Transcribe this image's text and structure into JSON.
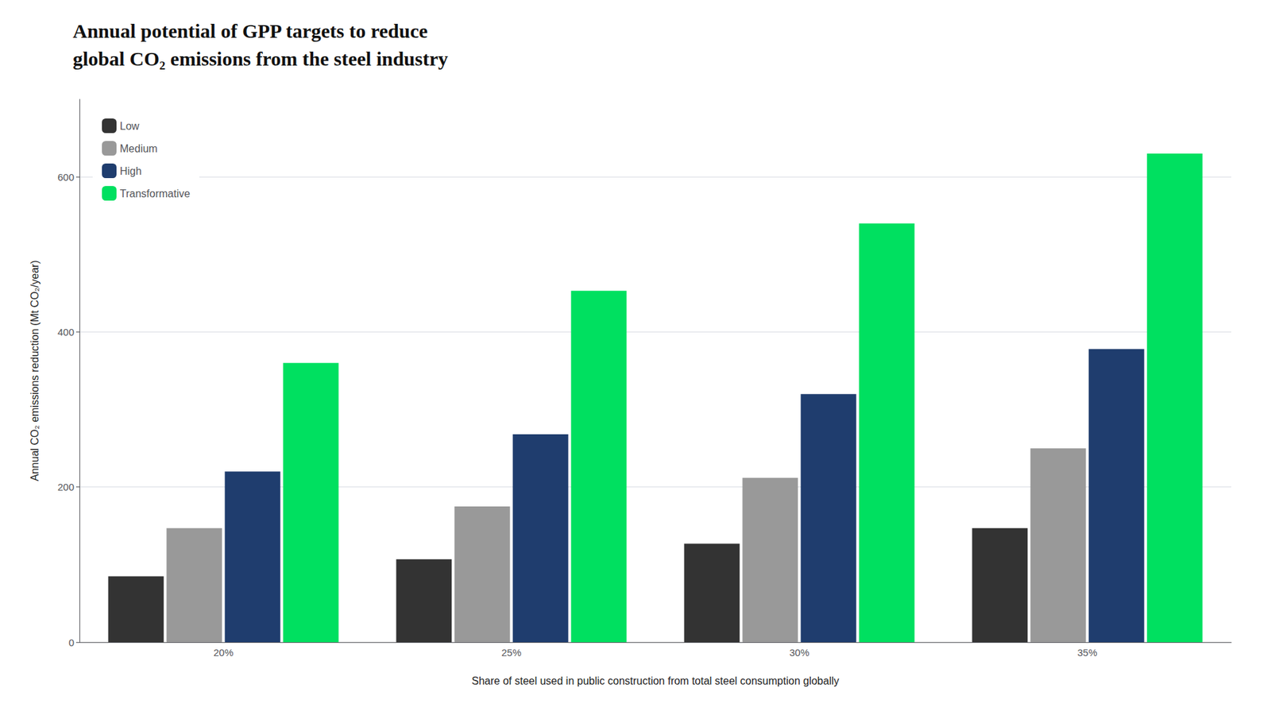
{
  "chart_data": {
    "type": "bar",
    "title": "Annual potential of GPP targets to reduce\nglobal CO₂ emissions from the steel industry",
    "categories": [
      "20%",
      "25%",
      "30%",
      "35%"
    ],
    "series": [
      {
        "name": "Low",
        "color": "#333333",
        "values": [
          85,
          107,
          127,
          147
        ]
      },
      {
        "name": "Medium",
        "color": "#999999",
        "values": [
          147,
          175,
          212,
          250
        ]
      },
      {
        "name": "High",
        "color": "#1f3d6e",
        "values": [
          220,
          268,
          320,
          378
        ]
      },
      {
        "name": "Transformative",
        "color": "#00e060",
        "values": [
          360,
          453,
          540,
          630
        ]
      }
    ],
    "xlabel": "Share of steel used in public construction from total steel consumption globally",
    "ylabel": "Annual CO₂ emissions reduction (Mt CO₂/year)",
    "ylim": [
      0,
      700
    ],
    "yticks": [
      0,
      200,
      400,
      600
    ],
    "grid": true,
    "legend": "upper left"
  }
}
